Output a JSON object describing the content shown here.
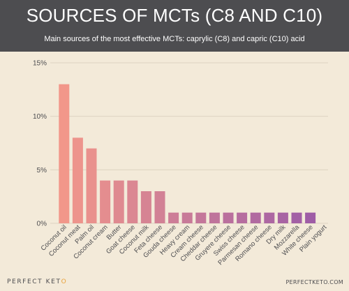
{
  "header": {
    "title": "SOURCES OF MCTs (C8 AND C10)",
    "subtitle": "Main sources of the most effective MCTs: caprylic (C8) and capric (C10) acid"
  },
  "footer": {
    "brand_main": "PERFECT KET",
    "brand_accent": "O",
    "website": "PERFECTKETO.COM"
  },
  "colors": {
    "header_bg": "#4d4d50",
    "background": "#f3ead9",
    "bar_start": "#f2978a",
    "bar_end": "#9a5aa8",
    "gridline": "#ddd3c1",
    "text": "#4d4d50"
  },
  "chart_data": {
    "type": "bar",
    "title": "SOURCES OF MCTs (C8 AND C10)",
    "subtitle": "Main sources of the most effective MCTs: caprylic (C8) and capric (C10) acid",
    "xlabel": "",
    "ylabel": "",
    "ylim": [
      0,
      15
    ],
    "yticks": [
      "0%",
      "5%",
      "10%",
      "15%"
    ],
    "ytick_values": [
      0,
      5,
      10,
      15
    ],
    "grid": true,
    "categories": [
      "Coconut oil",
      "Coconut meat",
      "Palm oil",
      "Coconut cream",
      "Butter",
      "Goat cheese",
      "Coconut milk",
      "Feta cheese",
      "Gouda cheese",
      "Heavy cream",
      "Cream cheese",
      "Cheddar cheese",
      "Gruyere cheese",
      "Swiss cheese",
      "Parmesan cheese",
      "Romano cheese",
      "Dry milk",
      "Mozzarella",
      "White cheese",
      "Plain yogurt"
    ],
    "values": [
      13,
      8,
      7,
      4,
      4,
      4,
      3,
      3,
      1,
      1,
      1,
      1,
      1,
      1,
      1,
      1,
      1,
      1,
      1,
      0
    ]
  }
}
